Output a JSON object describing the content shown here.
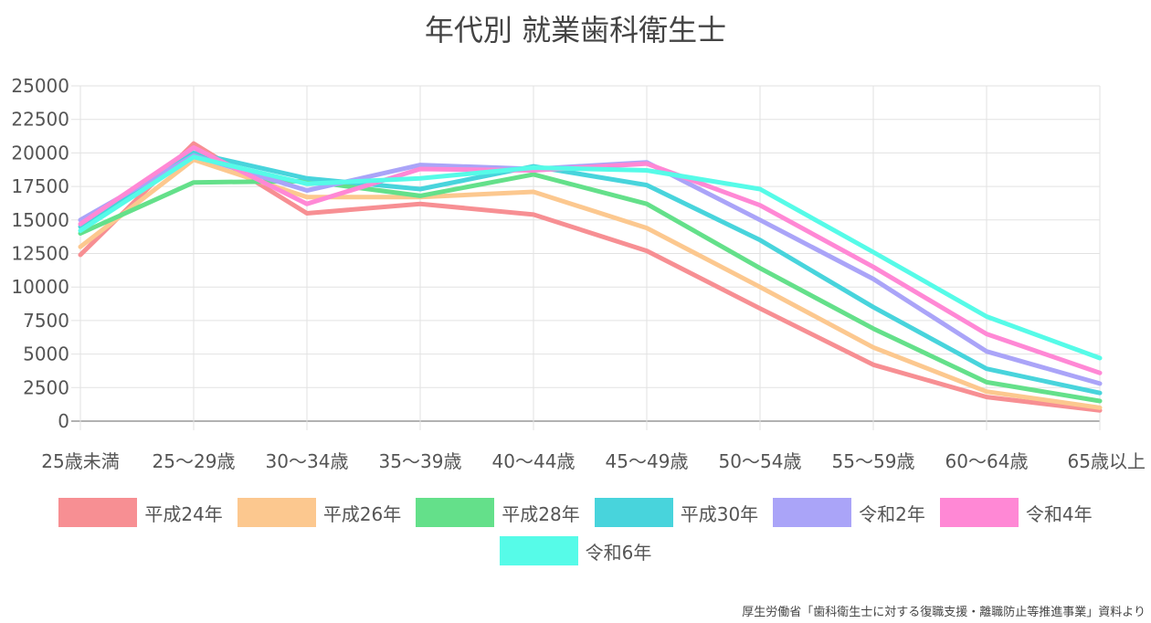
{
  "chart_data": {
    "type": "line",
    "title": "年代別 就業歯科衛生士",
    "xlabel": "",
    "ylabel": "",
    "ylim": [
      0,
      25000
    ],
    "yticks": [
      0,
      2500,
      5000,
      7500,
      10000,
      12500,
      15000,
      17500,
      20000,
      22500,
      25000
    ],
    "categories": [
      "25歳未満",
      "25〜29歳",
      "30〜34歳",
      "35〜39歳",
      "40〜44歳",
      "45〜49歳",
      "50〜54歳",
      "55〜59歳",
      "60〜64歳",
      "65歳以上"
    ],
    "grid": true,
    "legend_position": "bottom",
    "series": [
      {
        "name": "平成24年",
        "color": "#f78f93",
        "values": [
          12400,
          20700,
          15500,
          16200,
          15400,
          12700,
          8400,
          4200,
          1800,
          800
        ]
      },
      {
        "name": "平成26年",
        "color": "#fcc88f",
        "values": [
          13000,
          19500,
          16700,
          16700,
          17100,
          14400,
          10000,
          5500,
          2200,
          1000
        ]
      },
      {
        "name": "平成28年",
        "color": "#64e08a",
        "values": [
          14000,
          17800,
          17900,
          16800,
          18400,
          16200,
          11400,
          6900,
          2900,
          1500
        ]
      },
      {
        "name": "平成30年",
        "color": "#48d4dc",
        "values": [
          14500,
          20000,
          18100,
          17300,
          19000,
          17600,
          13500,
          8500,
          3900,
          2100
        ]
      },
      {
        "name": "令和2年",
        "color": "#aaa4f8",
        "values": [
          15000,
          19800,
          17200,
          19100,
          18800,
          19300,
          15000,
          10600,
          5200,
          2800
        ]
      },
      {
        "name": "令和4年",
        "color": "#ff88d5",
        "values": [
          14700,
          20400,
          16200,
          18800,
          18700,
          19200,
          16100,
          11500,
          6500,
          3600
        ]
      },
      {
        "name": "令和6年",
        "color": "#56fbe8",
        "values": [
          14200,
          19700,
          17700,
          18100,
          18900,
          18700,
          17300,
          12600,
          7800,
          4700
        ]
      }
    ]
  },
  "source_note": "厚生労働省「歯科衛生士に対する復職支援・離職防止等推進事業」資料より"
}
